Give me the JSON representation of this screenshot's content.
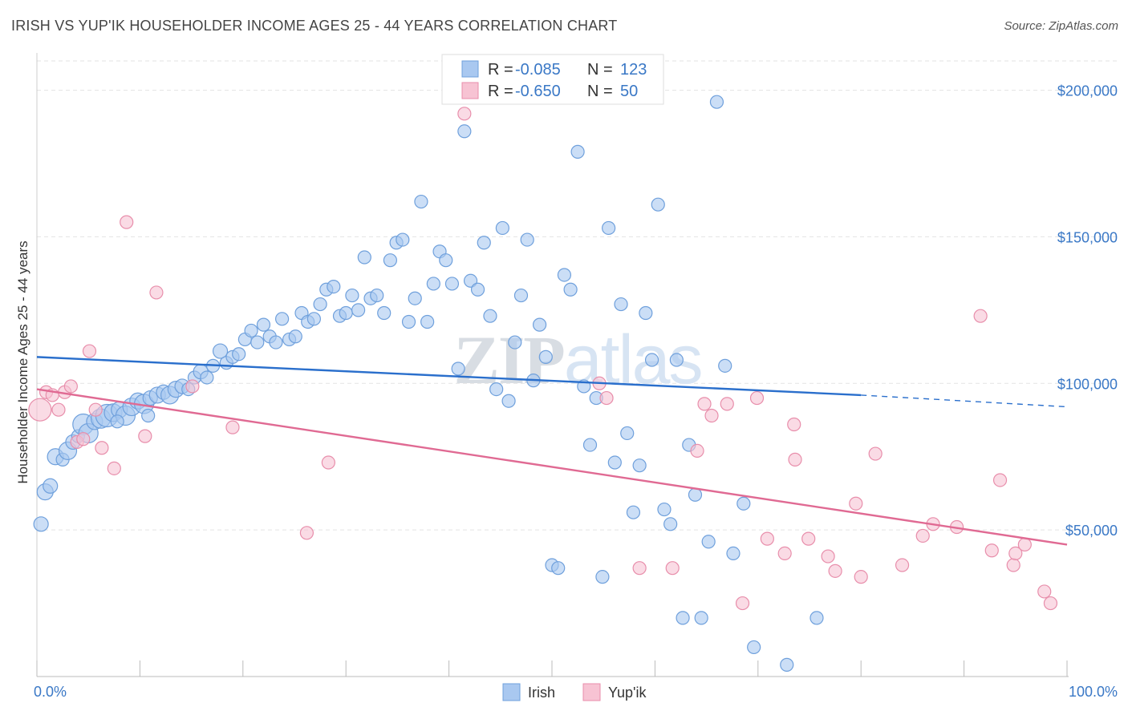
{
  "title": "IRISH VS YUP'IK HOUSEHOLDER INCOME AGES 25 - 44 YEARS CORRELATION CHART",
  "source": "Source: ZipAtlas.com",
  "watermark": "ZIPatlas",
  "colors": {
    "irish_fill": "#a9c8f0",
    "irish_stroke": "#6fa0dc",
    "irish_line": "#2a6fcc",
    "yupik_fill": "#f7c3d3",
    "yupik_stroke": "#e88eab",
    "yupik_line": "#e06a93",
    "axis_text": "#3a78c6",
    "grid": "#e3e3e3"
  },
  "legend": {
    "irish": {
      "r_label": "R =",
      "r_value": "-0.085",
      "n_label": "N =",
      "n_value": "123"
    },
    "yupik": {
      "r_label": "R =",
      "r_value": "-0.650",
      "n_label": "N =",
      "n_value": "50"
    }
  },
  "bottom_legend": [
    "Irish",
    "Yup'ik"
  ],
  "chart_data": {
    "type": "scatter",
    "title": "IRISH VS YUP'IK HOUSEHOLDER INCOME AGES 25 - 44 YEARS CORRELATION CHART",
    "xlabel": "",
    "ylabel": "Householder Income Ages 25 - 44 years",
    "xlim": [
      0,
      100
    ],
    "ylim": [
      0,
      210000
    ],
    "x_tick_labels": [
      "0.0%",
      "100.0%"
    ],
    "y_ticks": [
      50000,
      100000,
      150000,
      200000
    ],
    "y_tick_labels": [
      "$50,000",
      "$100,000",
      "$150,000",
      "$200,000"
    ],
    "grid": true,
    "legend_position": "top-center",
    "series": [
      {
        "name": "Irish",
        "r": -0.085,
        "n": 123,
        "trend": {
          "x0": 0,
          "y0": 109000,
          "x1": 80,
          "y1": 96000,
          "dash_to_x": 100,
          "dash_to_y": 92000
        },
        "points": [
          [
            0.4,
            52000,
            9
          ],
          [
            0.8,
            63000,
            10
          ],
          [
            1.3,
            65000,
            9
          ],
          [
            1.8,
            75000,
            10
          ],
          [
            2.5,
            74000,
            8
          ],
          [
            3.0,
            77000,
            11
          ],
          [
            3.5,
            80000,
            9
          ],
          [
            4.0,
            82000,
            8
          ],
          [
            4.5,
            86000,
            13
          ],
          [
            5.0,
            83000,
            12
          ],
          [
            5.6,
            87000,
            10
          ],
          [
            6.2,
            88000,
            12
          ],
          [
            6.8,
            89000,
            14
          ],
          [
            7.4,
            90000,
            11
          ],
          [
            8.0,
            91000,
            10
          ],
          [
            8.6,
            89000,
            12
          ],
          [
            9.2,
            92000,
            11
          ],
          [
            9.8,
            94000,
            10
          ],
          [
            10.4,
            93000,
            12
          ],
          [
            11.0,
            95000,
            9
          ],
          [
            11.7,
            96000,
            10
          ],
          [
            12.3,
            97000,
            9
          ],
          [
            12.9,
            96000,
            11
          ],
          [
            13.5,
            98000,
            10
          ],
          [
            14.1,
            99000,
            9
          ],
          [
            14.7,
            98000,
            8
          ],
          [
            15.3,
            102000,
            8
          ],
          [
            15.9,
            104000,
            9
          ],
          [
            16.5,
            102000,
            8
          ],
          [
            17.1,
            106000,
            8
          ],
          [
            17.8,
            111000,
            9
          ],
          [
            18.4,
            107000,
            8
          ],
          [
            19.0,
            109000,
            8
          ],
          [
            19.6,
            110000,
            8
          ],
          [
            20.2,
            115000,
            8
          ],
          [
            20.8,
            118000,
            8
          ],
          [
            21.4,
            114000,
            8
          ],
          [
            22.0,
            120000,
            8
          ],
          [
            22.6,
            116000,
            8
          ],
          [
            23.2,
            114000,
            8
          ],
          [
            23.8,
            122000,
            8
          ],
          [
            24.5,
            115000,
            8
          ],
          [
            25.1,
            116000,
            8
          ],
          [
            25.7,
            124000,
            8
          ],
          [
            26.3,
            121000,
            8
          ],
          [
            26.9,
            122000,
            8
          ],
          [
            27.5,
            127000,
            8
          ],
          [
            28.1,
            132000,
            8
          ],
          [
            28.8,
            133000,
            8
          ],
          [
            29.4,
            123000,
            8
          ],
          [
            30.0,
            124000,
            8
          ],
          [
            30.6,
            130000,
            8
          ],
          [
            31.2,
            125000,
            8
          ],
          [
            31.8,
            143000,
            8
          ],
          [
            32.4,
            129000,
            8
          ],
          [
            33.0,
            130000,
            8
          ],
          [
            33.7,
            124000,
            8
          ],
          [
            34.3,
            142000,
            8
          ],
          [
            34.9,
            148000,
            8
          ],
          [
            35.5,
            149000,
            8
          ],
          [
            36.1,
            121000,
            8
          ],
          [
            36.7,
            129000,
            8
          ],
          [
            37.3,
            162000,
            8
          ],
          [
            37.9,
            121000,
            8
          ],
          [
            38.5,
            134000,
            8
          ],
          [
            39.1,
            145000,
            8
          ],
          [
            39.7,
            142000,
            8
          ],
          [
            40.3,
            134000,
            8
          ],
          [
            40.9,
            105000,
            8
          ],
          [
            41.5,
            186000,
            8
          ],
          [
            42.1,
            135000,
            8
          ],
          [
            42.8,
            132000,
            8
          ],
          [
            43.4,
            148000,
            8
          ],
          [
            44.0,
            123000,
            8
          ],
          [
            44.6,
            98000,
            8
          ],
          [
            45.2,
            153000,
            8
          ],
          [
            45.8,
            94000,
            8
          ],
          [
            46.4,
            114000,
            8
          ],
          [
            47.0,
            130000,
            8
          ],
          [
            47.6,
            149000,
            8
          ],
          [
            48.2,
            101000,
            8
          ],
          [
            48.8,
            120000,
            8
          ],
          [
            49.4,
            109000,
            8
          ],
          [
            50.0,
            38000,
            8
          ],
          [
            50.6,
            37000,
            8
          ],
          [
            51.2,
            137000,
            8
          ],
          [
            51.8,
            132000,
            8
          ],
          [
            52.5,
            179000,
            8
          ],
          [
            53.1,
            99000,
            8
          ],
          [
            53.7,
            79000,
            8
          ],
          [
            54.3,
            95000,
            8
          ],
          [
            54.9,
            34000,
            8
          ],
          [
            55.5,
            153000,
            8
          ],
          [
            56.1,
            73000,
            8
          ],
          [
            56.7,
            127000,
            8
          ],
          [
            57.3,
            83000,
            8
          ],
          [
            57.9,
            56000,
            8
          ],
          [
            58.5,
            72000,
            8
          ],
          [
            59.1,
            124000,
            8
          ],
          [
            59.7,
            108000,
            8
          ],
          [
            60.3,
            161000,
            8
          ],
          [
            60.9,
            57000,
            8
          ],
          [
            61.5,
            52000,
            8
          ],
          [
            62.1,
            108000,
            8
          ],
          [
            62.7,
            20000,
            8
          ],
          [
            63.3,
            79000,
            8
          ],
          [
            63.9,
            62000,
            8
          ],
          [
            64.5,
            20000,
            8
          ],
          [
            65.2,
            46000,
            8
          ],
          [
            66.0,
            196000,
            8
          ],
          [
            66.8,
            106000,
            8
          ],
          [
            67.6,
            42000,
            8
          ],
          [
            68.6,
            59000,
            8
          ],
          [
            69.6,
            10000,
            8
          ],
          [
            72.8,
            4000,
            8
          ],
          [
            75.7,
            20000,
            8
          ],
          [
            10.8,
            89000,
            8
          ],
          [
            7.8,
            87000,
            8
          ]
        ]
      },
      {
        "name": "Yup'ik",
        "r": -0.65,
        "n": 50,
        "trend": {
          "x0": 0,
          "y0": 98000,
          "x1": 100,
          "y1": 45000
        },
        "points": [
          [
            0.3,
            91000,
            14
          ],
          [
            0.9,
            97000,
            8
          ],
          [
            1.5,
            96000,
            8
          ],
          [
            2.1,
            91000,
            8
          ],
          [
            2.7,
            97000,
            8
          ],
          [
            3.3,
            99000,
            8
          ],
          [
            3.9,
            80000,
            8
          ],
          [
            4.5,
            81000,
            8
          ],
          [
            5.1,
            111000,
            8
          ],
          [
            5.7,
            91000,
            8
          ],
          [
            6.3,
            78000,
            8
          ],
          [
            7.5,
            71000,
            8
          ],
          [
            8.7,
            155000,
            8
          ],
          [
            10.5,
            82000,
            8
          ],
          [
            11.6,
            131000,
            8
          ],
          [
            15.1,
            99000,
            8
          ],
          [
            19.0,
            85000,
            8
          ],
          [
            26.2,
            49000,
            8
          ],
          [
            28.3,
            73000,
            8
          ],
          [
            41.5,
            192000,
            8
          ],
          [
            54.6,
            100000,
            8
          ],
          [
            55.3,
            95000,
            8
          ],
          [
            58.5,
            37000,
            8
          ],
          [
            61.7,
            37000,
            8
          ],
          [
            64.1,
            77000,
            8
          ],
          [
            64.8,
            93000,
            8
          ],
          [
            65.5,
            89000,
            8
          ],
          [
            67.0,
            93000,
            8
          ],
          [
            68.5,
            25000,
            8
          ],
          [
            69.9,
            95000,
            8
          ],
          [
            70.9,
            47000,
            8
          ],
          [
            72.6,
            42000,
            8
          ],
          [
            73.5,
            86000,
            8
          ],
          [
            73.6,
            74000,
            8
          ],
          [
            74.9,
            47000,
            8
          ],
          [
            76.8,
            41000,
            8
          ],
          [
            77.5,
            36000,
            8
          ],
          [
            79.5,
            59000,
            8
          ],
          [
            80.0,
            34000,
            8
          ],
          [
            81.4,
            76000,
            8
          ],
          [
            84.0,
            38000,
            8
          ],
          [
            86.0,
            48000,
            8
          ],
          [
            87.0,
            52000,
            8
          ],
          [
            89.3,
            51000,
            8
          ],
          [
            91.6,
            123000,
            8
          ],
          [
            92.7,
            43000,
            8
          ],
          [
            93.5,
            67000,
            8
          ],
          [
            94.8,
            38000,
            8
          ],
          [
            95.0,
            42000,
            8
          ],
          [
            95.9,
            45000,
            8
          ],
          [
            97.8,
            29000,
            8
          ],
          [
            98.4,
            25000,
            8
          ]
        ]
      }
    ]
  }
}
